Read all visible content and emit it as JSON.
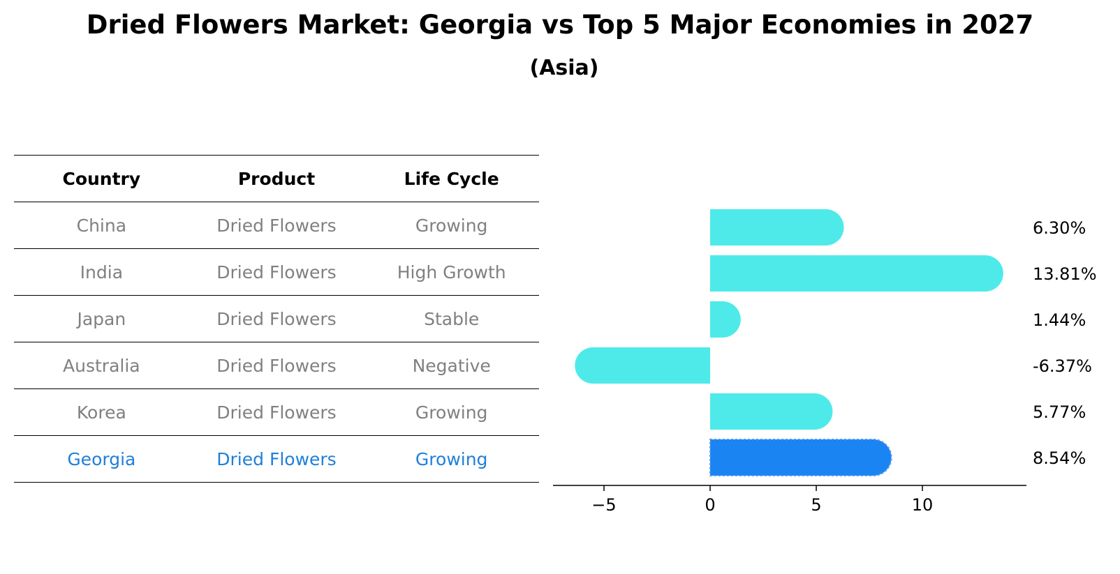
{
  "header": {
    "title": "Dried Flowers Market: Georgia vs Top 5 Major Economies in 2027",
    "subtitle": "(Asia)"
  },
  "table": {
    "columns": [
      "Country",
      "Product",
      "Life Cycle"
    ],
    "rows": [
      {
        "country": "China",
        "product": "Dried Flowers",
        "life_cycle": "Growing"
      },
      {
        "country": "India",
        "product": "Dried Flowers",
        "life_cycle": "High Growth"
      },
      {
        "country": "Japan",
        "product": "Dried Flowers",
        "life_cycle": "Stable"
      },
      {
        "country": "Australia",
        "product": "Dried Flowers",
        "life_cycle": "Negative"
      },
      {
        "country": "Korea",
        "product": "Dried Flowers",
        "life_cycle": "Growing"
      },
      {
        "country": "Georgia",
        "product": "Dried Flowers",
        "life_cycle": "Growing"
      }
    ],
    "highlight_color": "#1f7fd9",
    "text_color": "#808080"
  },
  "chart_data": {
    "type": "bar",
    "orientation": "horizontal",
    "categories": [
      "China",
      "India",
      "Japan",
      "Australia",
      "Korea",
      "Georgia"
    ],
    "values": [
      6.3,
      13.81,
      1.44,
      -6.37,
      5.77,
      8.54
    ],
    "value_labels": [
      "6.30%",
      "13.81%",
      "1.44%",
      "-6.37%",
      "5.77%",
      "8.54%"
    ],
    "xlim": [
      -7.4,
      14.9
    ],
    "xticks": [
      -5,
      0,
      5,
      10
    ],
    "xtick_labels": [
      "−5",
      "0",
      "5",
      "10"
    ],
    "bar_color": "#4eeaea",
    "highlight_color": "#1a84f2",
    "highlight_category": "Georgia",
    "grid": false
  }
}
